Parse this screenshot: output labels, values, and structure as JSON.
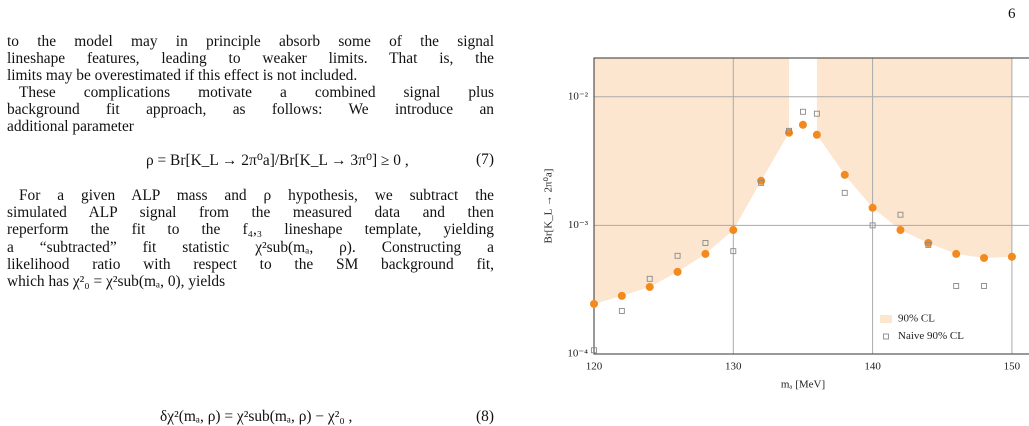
{
  "page_number": "6",
  "paragraphs": [
    {
      "lines": [
        "to the model may in principle absorb some of the signal",
        "lineshape features, leading to weaker limits. That is, the",
        "limits may be overestimated if this effect is not included."
      ]
    },
    {
      "lines": [
        "These complications motivate a combined signal plus",
        "background fit approach, as follows: We introduce an",
        "additional parameter"
      ]
    },
    {
      "lines": [
        "For a given ALP mass and ρ hypothesis, we subtract the",
        "simulated ALP signal from the measured data and then",
        "reperform the fit to the f₄,₃ lineshape template, yielding",
        "a “subtracted” fit statistic χ²sub(mₐ, ρ). Constructing a",
        "likelihood ratio with respect to the SM background fit,",
        "which has χ²₀ = χ²sub(mₐ, 0), yields"
      ]
    }
  ],
  "equations": [
    {
      "text": "ρ = Br[K_L → 2π⁰a]/Br[K_L → 3π⁰] ≥ 0 ,",
      "number": "(7)"
    },
    {
      "text": "δχ²(mₐ, ρ) = χ²sub(mₐ, ρ) − χ²₀ ,",
      "number": "(8)"
    }
  ],
  "chart_data": {
    "type": "scatter",
    "xlabel": "mₐ [MeV]",
    "ylabel": "Br[K_L → 2π⁰a]",
    "x": [
      120,
      122,
      124,
      126,
      128,
      130,
      132,
      134,
      135,
      136,
      138,
      140,
      142,
      144,
      146,
      148,
      150
    ],
    "series": [
      {
        "name": "90% CL",
        "color": "#f28a1e",
        "fill": "#fde6cf",
        "values": [
          0.000245,
          0.000283,
          0.000332,
          0.000435,
          0.0006,
          0.00092,
          0.00222,
          0.00525,
          0.00605,
          0.00506,
          0.00247,
          0.00137,
          0.00092,
          0.00073,
          0.0006,
          0.000558,
          0.00057
        ]
      },
      {
        "name": "Naive 90% CL",
        "color": "#8a8a8a",
        "values": [
          0.000107,
          0.000216,
          0.000384,
          0.00058,
          0.00073,
          0.00063,
          0.00214,
          0.00543,
          0.00764,
          0.00738,
          0.00179,
          0.001,
          0.00121,
          0.000705,
          0.000338,
          0.000338,
          null
        ]
      }
    ],
    "xlim": [
      120,
      151.5
    ],
    "ylim": [
      0.0001,
      0.02
    ],
    "log_y": true,
    "grid": true,
    "xticks": [
      120,
      130,
      140,
      150
    ],
    "yticks": [
      {
        "value": 0.0001,
        "label": "10⁻⁴"
      },
      {
        "value": 0.001,
        "label": "10⁻³"
      },
      {
        "value": 0.01,
        "label": "10⁻²"
      }
    ],
    "legend": "lower right"
  }
}
